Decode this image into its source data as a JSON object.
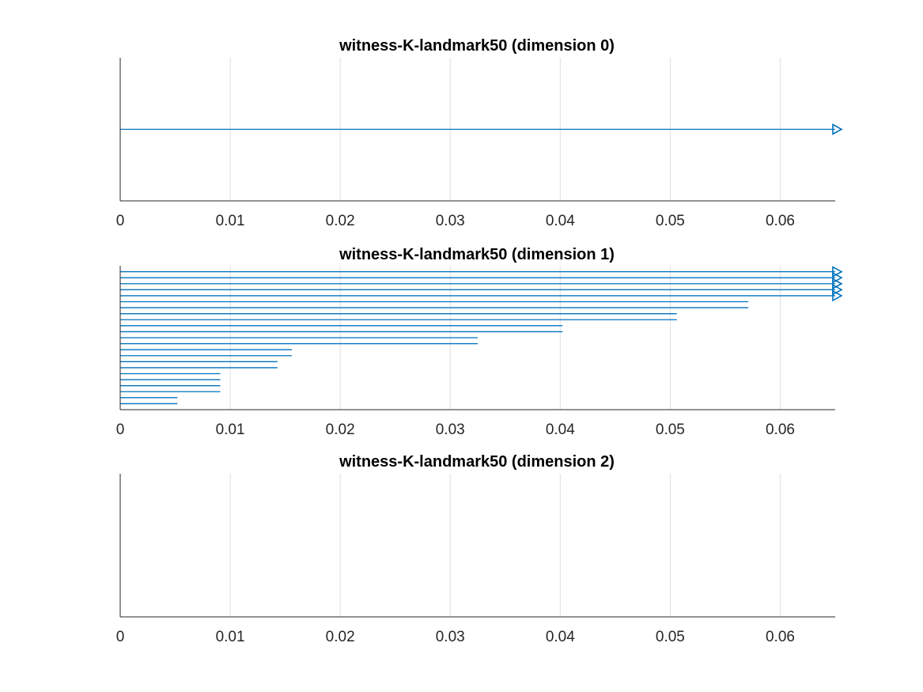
{
  "chart_data": [
    {
      "type": "barcode",
      "title": "witness-K-landmark50 (dimension 0)",
      "xlabel": "",
      "ylabel": "",
      "xlim": [
        0,
        0.065
      ],
      "xticks": [
        "0",
        "0.01",
        "0.02",
        "0.03",
        "0.04",
        "0.05",
        "0.06"
      ],
      "grid": "x",
      "color": "#0072bd",
      "bars": [
        {
          "birth": 0,
          "death": 0.065,
          "infinite": true
        }
      ]
    },
    {
      "type": "barcode",
      "title": "witness-K-landmark50 (dimension 1)",
      "xlabel": "",
      "ylabel": "",
      "xlim": [
        0,
        0.065
      ],
      "xticks": [
        "0",
        "0.01",
        "0.02",
        "0.03",
        "0.04",
        "0.05",
        "0.06"
      ],
      "grid": "x",
      "color": "#0072bd",
      "bars": [
        {
          "birth": 0,
          "death": 0.065,
          "infinite": true
        },
        {
          "birth": 0,
          "death": 0.065,
          "infinite": true
        },
        {
          "birth": 0,
          "death": 0.065,
          "infinite": true
        },
        {
          "birth": 0,
          "death": 0.065,
          "infinite": true
        },
        {
          "birth": 0,
          "death": 0.065,
          "infinite": true
        },
        {
          "birth": 0,
          "death": 0.0571,
          "infinite": false
        },
        {
          "birth": 0,
          "death": 0.0571,
          "infinite": false
        },
        {
          "birth": 0,
          "death": 0.0506,
          "infinite": false
        },
        {
          "birth": 0,
          "death": 0.0506,
          "infinite": false
        },
        {
          "birth": 0,
          "death": 0.0402,
          "infinite": false
        },
        {
          "birth": 0,
          "death": 0.0402,
          "infinite": false
        },
        {
          "birth": 0,
          "death": 0.0325,
          "infinite": false
        },
        {
          "birth": 0,
          "death": 0.0325,
          "infinite": false
        },
        {
          "birth": 0,
          "death": 0.0156,
          "infinite": false
        },
        {
          "birth": 0,
          "death": 0.0156,
          "infinite": false
        },
        {
          "birth": 0,
          "death": 0.0143,
          "infinite": false
        },
        {
          "birth": 0,
          "death": 0.0143,
          "infinite": false
        },
        {
          "birth": 0,
          "death": 0.0091,
          "infinite": false
        },
        {
          "birth": 0,
          "death": 0.0091,
          "infinite": false
        },
        {
          "birth": 0,
          "death": 0.0091,
          "infinite": false
        },
        {
          "birth": 0,
          "death": 0.0091,
          "infinite": false
        },
        {
          "birth": 0,
          "death": 0.0052,
          "infinite": false
        },
        {
          "birth": 0,
          "death": 0.0052,
          "infinite": false
        }
      ]
    },
    {
      "type": "barcode",
      "title": "witness-K-landmark50 (dimension 2)",
      "xlabel": "",
      "ylabel": "",
      "xlim": [
        0,
        0.065
      ],
      "xticks": [
        "0",
        "0.01",
        "0.02",
        "0.03",
        "0.04",
        "0.05",
        "0.06"
      ],
      "grid": "x",
      "color": "#0072bd",
      "bars": []
    }
  ]
}
